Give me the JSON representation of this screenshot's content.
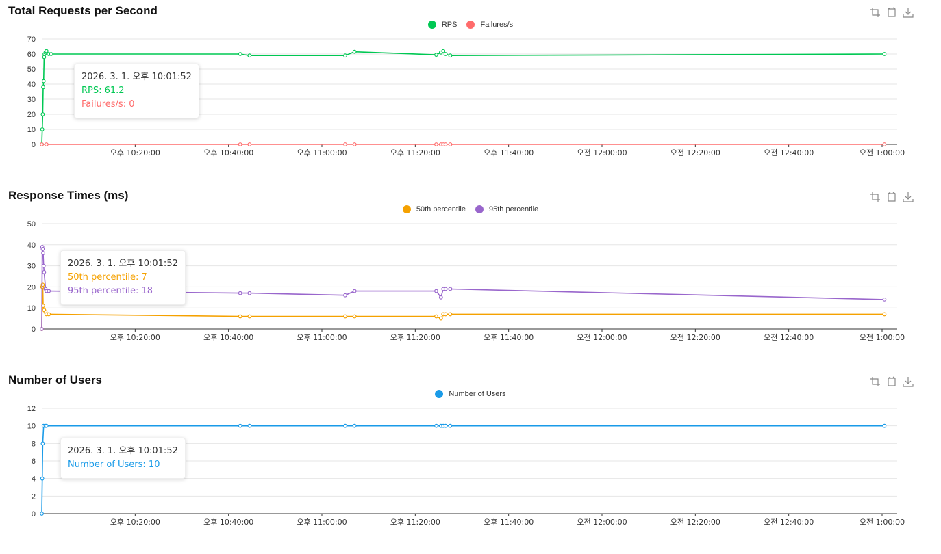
{
  "icons": {
    "zoom": "zoom-icon",
    "zoom_reset": "zoom-reset-icon",
    "download": "download-icon"
  },
  "x_ticks": [
    "오후 10:20:00",
    "오후 10:40:00",
    "오후 11:00:00",
    "오후 11:20:00",
    "오후 11:40:00",
    "오전 12:00:00",
    "오전 12:20:00",
    "오전 12:40:00",
    "오전 1:00:00"
  ],
  "charts": [
    {
      "title": "Total Requests per Second",
      "tooltip": {
        "title": "2026. 3. 1. 오후 10:01:52",
        "lines": [
          {
            "text": "RPS: 61.2",
            "color": "#00c853"
          },
          {
            "text": "Failures/s: 0",
            "color": "#ff6b6b"
          }
        ]
      },
      "chart_data": {
        "type": "line",
        "ylim": [
          0,
          70
        ],
        "yticks": [
          0,
          10,
          20,
          30,
          40,
          50,
          60,
          70
        ],
        "x_unit": "minutes after 오후 10:00:00",
        "series": [
          {
            "name": "RPS",
            "color": "#00c853",
            "x": [
              0.0,
              0.1,
              0.2,
              0.3,
              0.4,
              0.5,
              0.6,
              0.8,
              1.0,
              1.5,
              2.0,
              42.5,
              44.5,
              65.0,
              67.0,
              84.5,
              85.5,
              86.0,
              86.5,
              87.5,
              180.5
            ],
            "y": [
              0,
              10,
              20,
              38,
              42,
              58,
              60,
              61,
              62,
              60,
              60,
              60,
              59,
              59,
              61.5,
              59.5,
              61,
              62,
              60,
              59,
              60
            ]
          },
          {
            "name": "Failures/s",
            "color": "#ff6b6b",
            "x": [
              0.0,
              1.0,
              42.5,
              44.5,
              65.0,
              67.0,
              84.5,
              85.5,
              86.0,
              86.5,
              87.5,
              180.5
            ],
            "y": [
              0,
              0,
              0,
              0,
              0,
              0,
              0,
              0,
              0,
              0,
              0,
              0
            ]
          }
        ]
      }
    },
    {
      "title": "Response Times (ms)",
      "tooltip": {
        "title": "2026. 3. 1. 오후 10:01:52",
        "lines": [
          {
            "text": "50th percentile: 7",
            "color": "#f5a100"
          },
          {
            "text": "95th percentile: 18",
            "color": "#9966cc"
          }
        ]
      },
      "chart_data": {
        "type": "line",
        "ylim": [
          0,
          50
        ],
        "yticks": [
          0,
          10,
          20,
          30,
          40,
          50
        ],
        "x_unit": "minutes after 오후 10:00:00",
        "series": [
          {
            "name": "50th percentile",
            "color": "#f5a100",
            "x": [
              0.0,
              0.1,
              0.2,
              0.3,
              0.5,
              0.8,
              1.0,
              1.5,
              42.5,
              44.5,
              65.0,
              67.0,
              84.5,
              85.5,
              86.0,
              86.5,
              87.5,
              180.5
            ],
            "y": [
              0,
              20,
              21,
              11,
              9,
              8,
              7,
              7,
              6,
              6,
              6,
              6,
              6,
              5,
              7,
              7,
              7,
              7
            ]
          },
          {
            "name": "95th percentile",
            "color": "#9966cc",
            "x": [
              0.0,
              0.1,
              0.2,
              0.3,
              0.4,
              0.5,
              0.8,
              1.0,
              1.5,
              42.5,
              44.5,
              65.0,
              67.0,
              84.5,
              85.5,
              86.0,
              86.5,
              87.5,
              180.5
            ],
            "y": [
              0,
              39,
              38,
              36,
              30,
              27,
              19,
              18,
              18,
              17,
              17,
              16,
              18,
              18,
              15,
              19,
              19,
              19,
              14
            ]
          }
        ]
      }
    },
    {
      "title": "Number of Users",
      "tooltip": {
        "title": "2026. 3. 1. 오후 10:01:52",
        "lines": [
          {
            "text": "Number of Users: 10",
            "color": "#1a9be8"
          }
        ]
      },
      "chart_data": {
        "type": "line",
        "ylim": [
          0,
          12
        ],
        "yticks": [
          0,
          2,
          4,
          6,
          8,
          10,
          12
        ],
        "x_unit": "minutes after 오후 10:00:00",
        "series": [
          {
            "name": "Number of Users",
            "color": "#1a9be8",
            "x": [
              0.0,
              0.1,
              0.2,
              0.4,
              0.8,
              1.0,
              42.5,
              44.5,
              65.0,
              67.0,
              84.5,
              85.5,
              86.0,
              86.5,
              87.5,
              180.5
            ],
            "y": [
              0,
              4,
              8,
              10,
              10,
              10,
              10,
              10,
              10,
              10,
              10,
              10,
              10,
              10,
              10,
              10
            ]
          }
        ]
      }
    }
  ]
}
